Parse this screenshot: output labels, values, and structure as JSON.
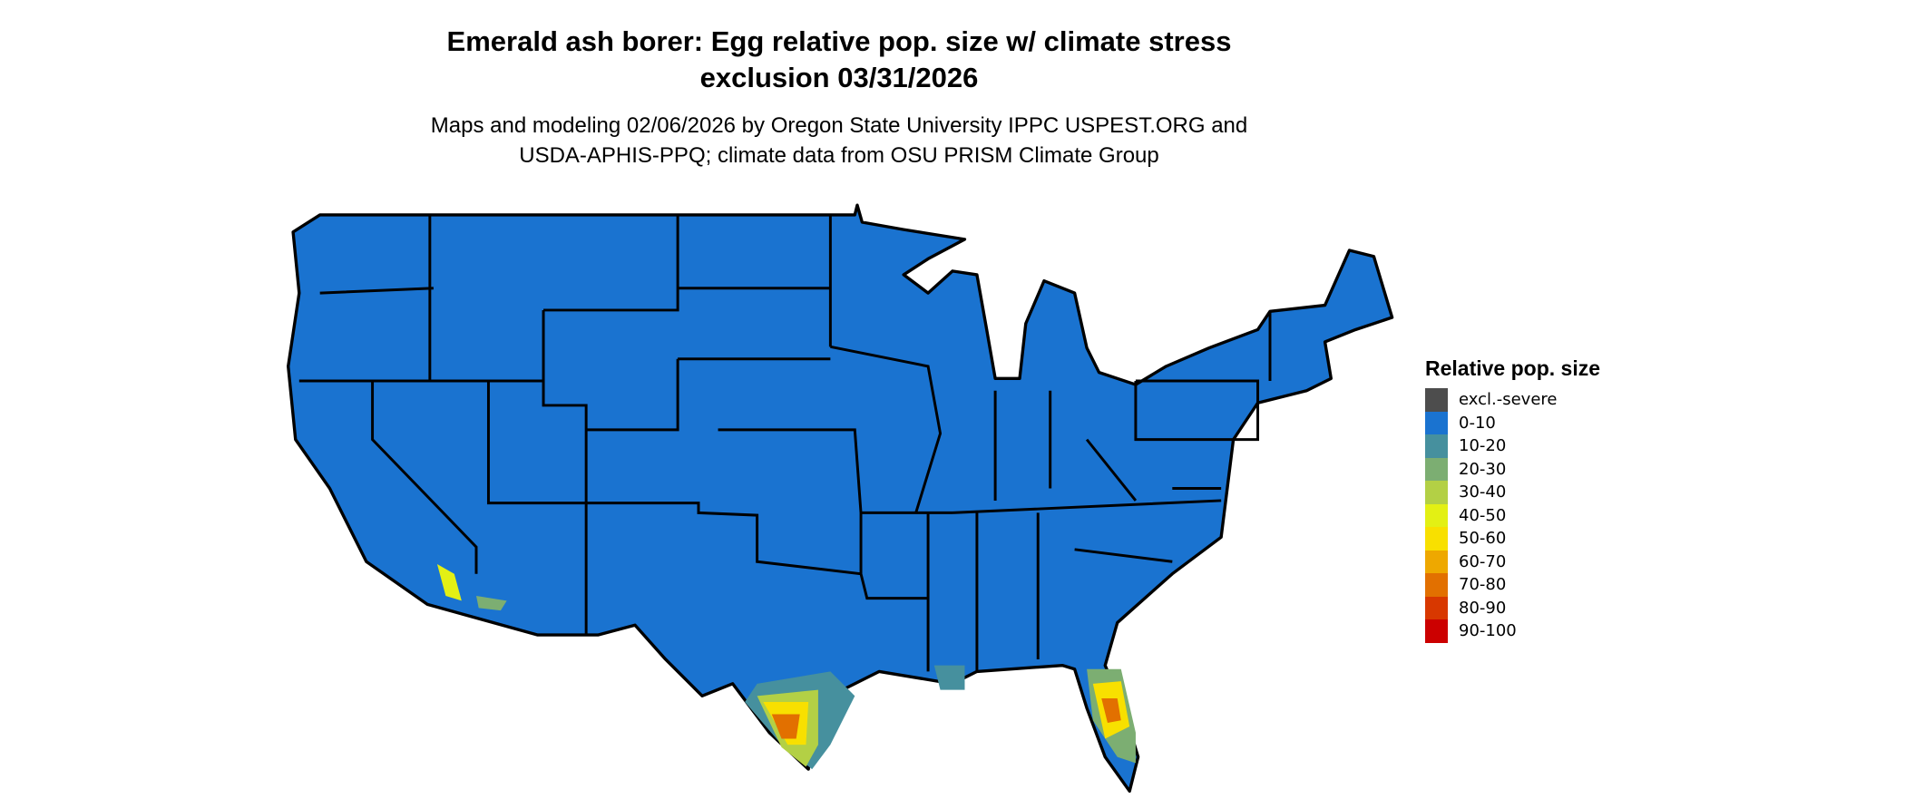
{
  "title": {
    "line1": "Emerald ash borer: Egg relative pop. size w/ climate stress",
    "line2": "exclusion 03/31/2026"
  },
  "subtitle": {
    "line1": "Maps and modeling 02/06/2026 by Oregon State University IPPC USPEST.ORG and",
    "line2": "USDA-APHIS-PPQ; climate data from OSU PRISM Climate Group"
  },
  "legend": {
    "title": "Relative pop. size",
    "items": [
      {
        "label": "excl.-severe",
        "color": "#4d4d4d"
      },
      {
        "label": "0-10",
        "color": "#1a73d0"
      },
      {
        "label": "10-20",
        "color": "#46909e"
      },
      {
        "label": "20-30",
        "color": "#7cae72"
      },
      {
        "label": "30-40",
        "color": "#b3d045"
      },
      {
        "label": "40-50",
        "color": "#e3f014"
      },
      {
        "label": "50-60",
        "color": "#f8e000"
      },
      {
        "label": "60-70",
        "color": "#eea800"
      },
      {
        "label": "70-80",
        "color": "#e27000"
      },
      {
        "label": "80-90",
        "color": "#d83800"
      },
      {
        "label": "90-100",
        "color": "#cc0000"
      }
    ]
  }
}
